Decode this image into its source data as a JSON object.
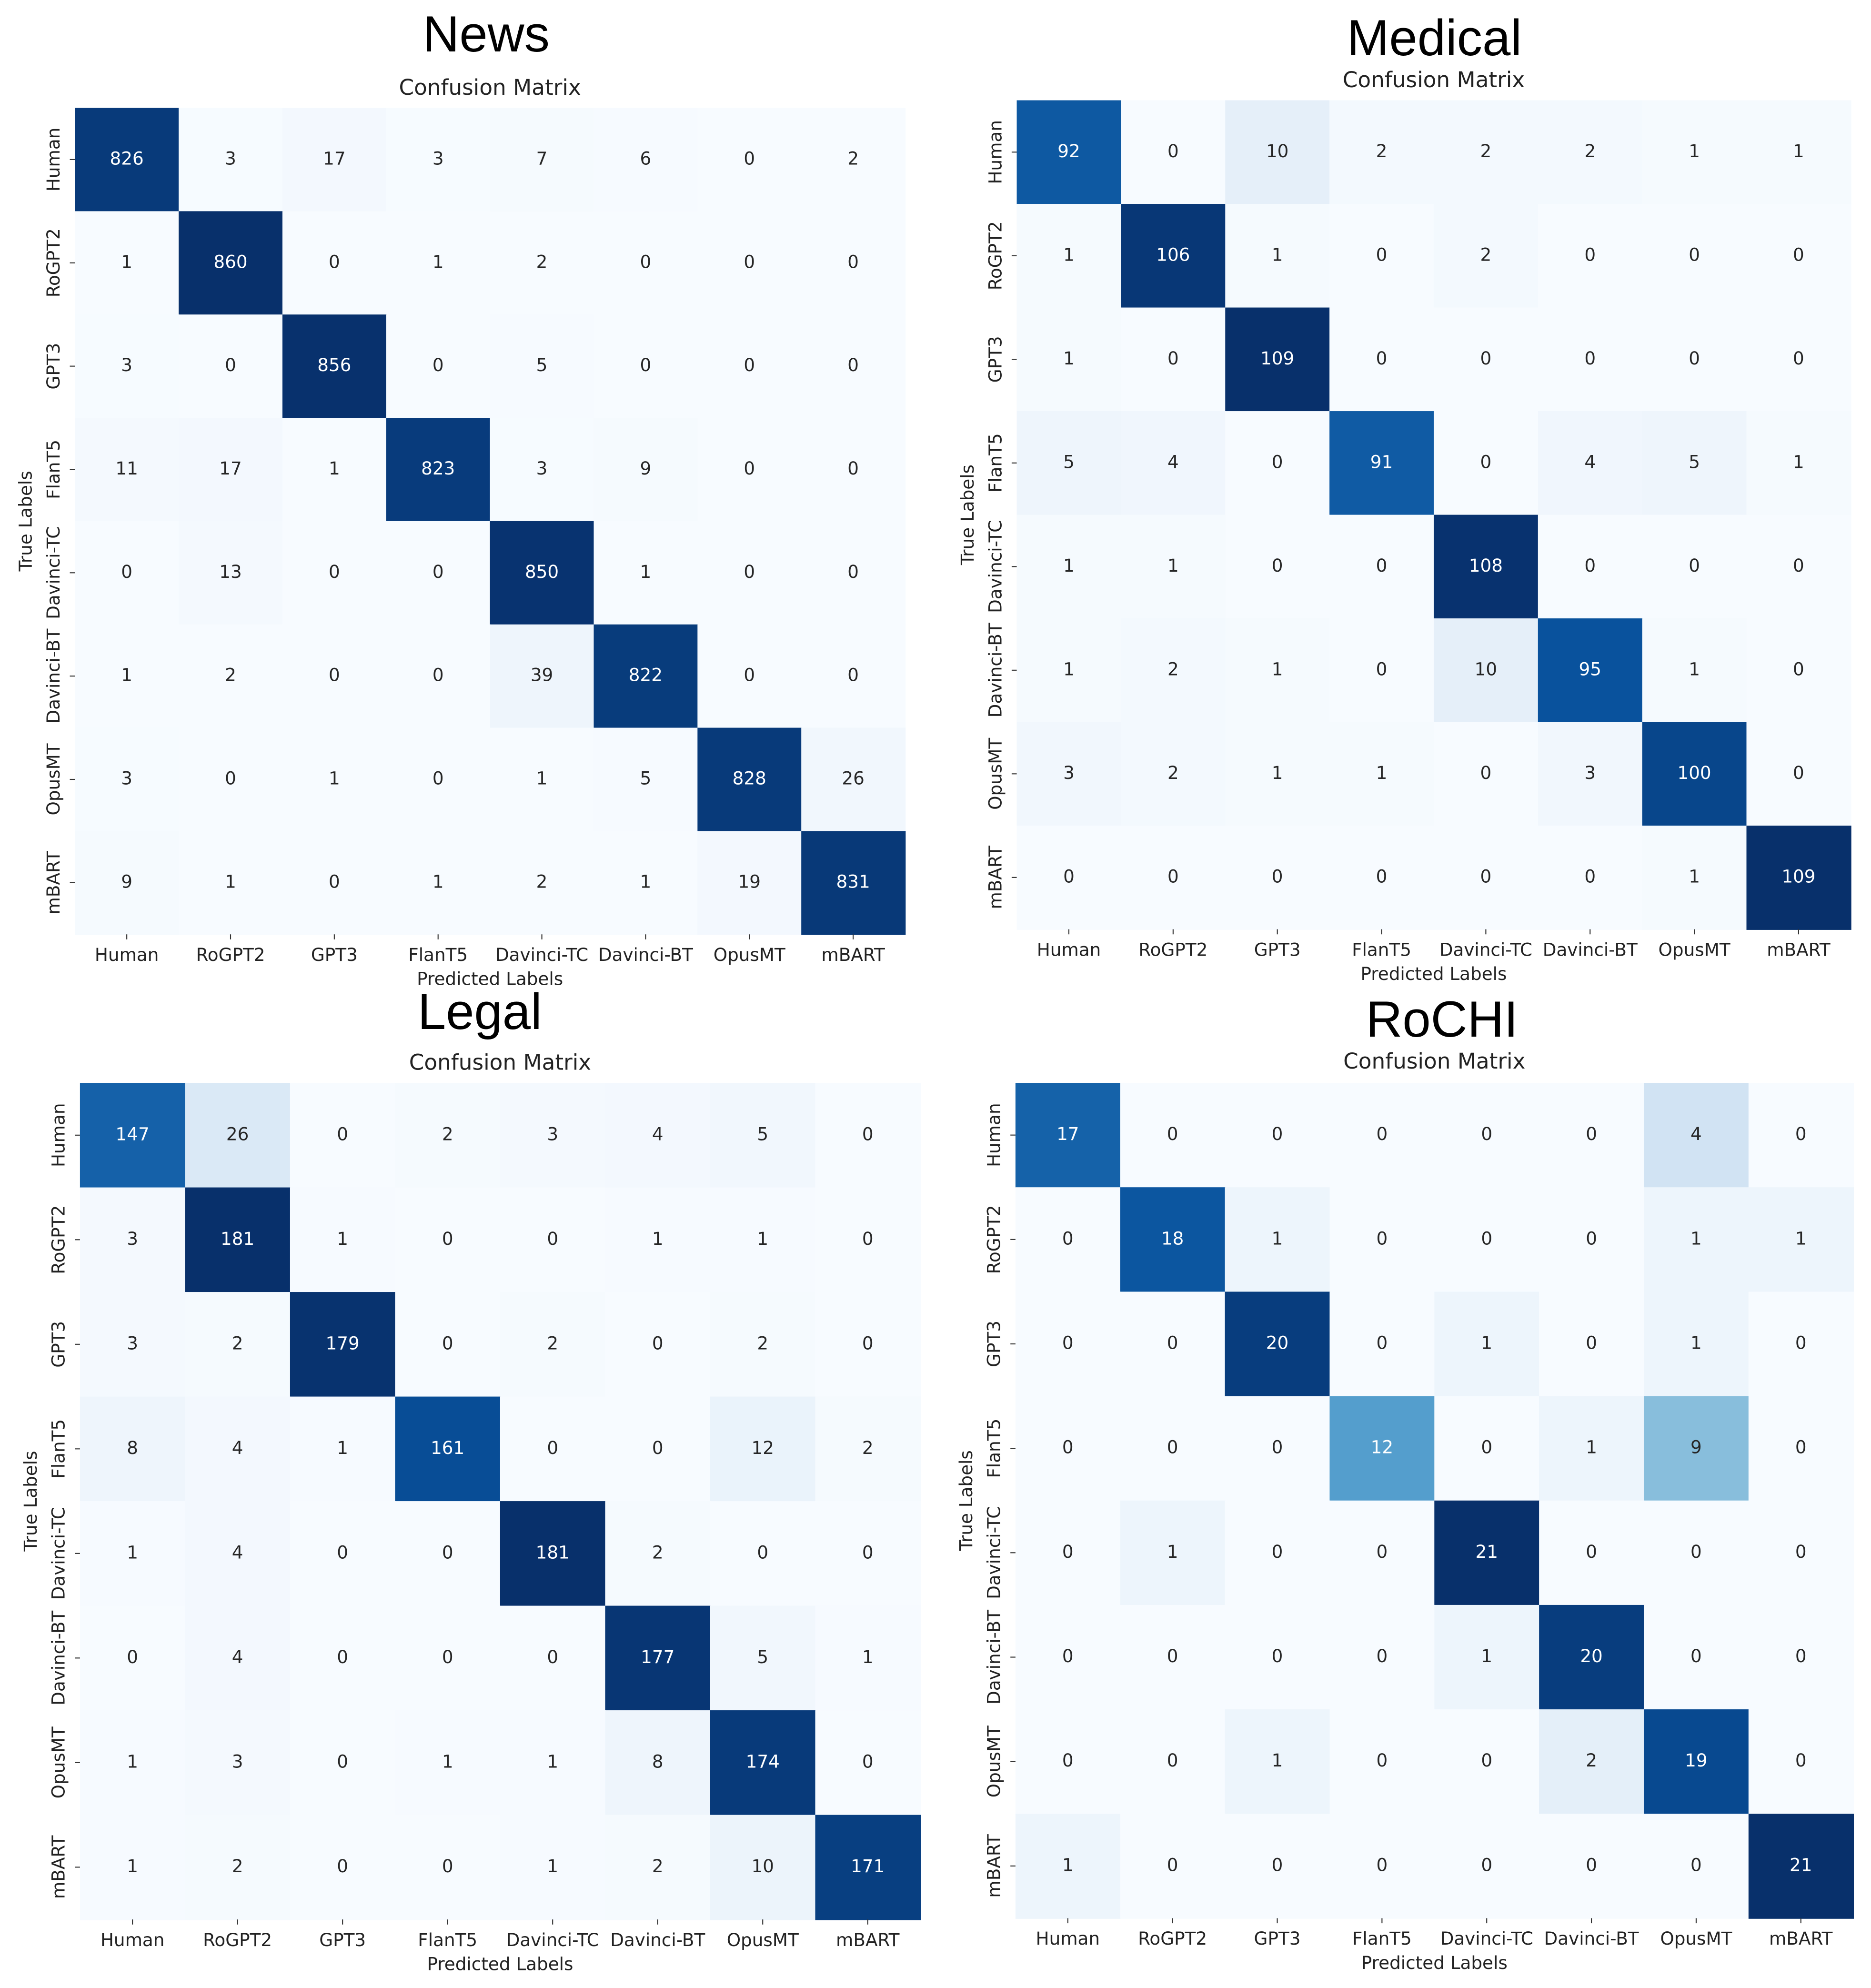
{
  "chart_data": [
    {
      "type": "heatmap",
      "title": "News",
      "subtitle": "Confusion Matrix",
      "x_label": "Predicted Labels",
      "y_label": "True Labels",
      "colormap": "Blues",
      "x_categories": [
        "Human",
        "RoGPT2",
        "GPT3",
        "FlanT5",
        "Davinci-TC",
        "Davinci-BT",
        "OpusMT",
        "mBART"
      ],
      "y_categories": [
        "Human",
        "RoGPT2",
        "GPT3",
        "FlanT5",
        "Davinci-TC",
        "Davinci-BT",
        "OpusMT",
        "mBART"
      ],
      "values": [
        [
          826,
          3,
          17,
          3,
          7,
          6,
          0,
          2
        ],
        [
          1,
          860,
          0,
          1,
          2,
          0,
          0,
          0
        ],
        [
          3,
          0,
          856,
          0,
          5,
          0,
          0,
          0
        ],
        [
          11,
          17,
          1,
          823,
          3,
          9,
          0,
          0
        ],
        [
          0,
          13,
          0,
          0,
          850,
          1,
          0,
          0
        ],
        [
          1,
          2,
          0,
          0,
          39,
          822,
          0,
          0
        ],
        [
          3,
          0,
          1,
          0,
          1,
          5,
          828,
          26
        ],
        [
          9,
          1,
          0,
          1,
          2,
          1,
          19,
          831
        ]
      ]
    },
    {
      "type": "heatmap",
      "title": "Medical",
      "subtitle": "Confusion Matrix",
      "x_label": "Predicted Labels",
      "y_label": "True Labels",
      "colormap": "Blues",
      "x_categories": [
        "Human",
        "RoGPT2",
        "GPT3",
        "FlanT5",
        "Davinci-TC",
        "Davinci-BT",
        "OpusMT",
        "mBART"
      ],
      "y_categories": [
        "Human",
        "RoGPT2",
        "GPT3",
        "FlanT5",
        "Davinci-TC",
        "Davinci-BT",
        "OpusMT",
        "mBART"
      ],
      "values": [
        [
          92,
          0,
          10,
          2,
          2,
          2,
          1,
          1
        ],
        [
          1,
          106,
          1,
          0,
          2,
          0,
          0,
          0
        ],
        [
          1,
          0,
          109,
          0,
          0,
          0,
          0,
          0
        ],
        [
          5,
          4,
          0,
          91,
          0,
          4,
          5,
          1
        ],
        [
          1,
          1,
          0,
          0,
          108,
          0,
          0,
          0
        ],
        [
          1,
          2,
          1,
          0,
          10,
          95,
          1,
          0
        ],
        [
          3,
          2,
          1,
          1,
          0,
          3,
          100,
          0
        ],
        [
          0,
          0,
          0,
          0,
          0,
          0,
          1,
          109
        ]
      ]
    },
    {
      "type": "heatmap",
      "title": "Legal",
      "subtitle": "Confusion Matrix",
      "x_label": "Predicted Labels",
      "y_label": "True Labels",
      "colormap": "Blues",
      "x_categories": [
        "Human",
        "RoGPT2",
        "GPT3",
        "FlanT5",
        "Davinci-TC",
        "Davinci-BT",
        "OpusMT",
        "mBART"
      ],
      "y_categories": [
        "Human",
        "RoGPT2",
        "GPT3",
        "FlanT5",
        "Davinci-TC",
        "Davinci-BT",
        "OpusMT",
        "mBART"
      ],
      "values": [
        [
          147,
          26,
          0,
          2,
          3,
          4,
          5,
          0
        ],
        [
          3,
          181,
          1,
          0,
          0,
          1,
          1,
          0
        ],
        [
          3,
          2,
          179,
          0,
          2,
          0,
          2,
          0
        ],
        [
          8,
          4,
          1,
          161,
          0,
          0,
          12,
          2
        ],
        [
          1,
          4,
          0,
          0,
          181,
          2,
          0,
          0
        ],
        [
          0,
          4,
          0,
          0,
          0,
          177,
          5,
          1
        ],
        [
          1,
          3,
          0,
          1,
          1,
          8,
          174,
          0
        ],
        [
          1,
          2,
          0,
          0,
          1,
          2,
          10,
          171
        ]
      ]
    },
    {
      "type": "heatmap",
      "title": "RoCHI",
      "subtitle": "Confusion Matrix",
      "x_label": "Predicted Labels",
      "y_label": "True Labels",
      "colormap": "Blues",
      "x_categories": [
        "Human",
        "RoGPT2",
        "GPT3",
        "FlanT5",
        "Davinci-TC",
        "Davinci-BT",
        "OpusMT",
        "mBART"
      ],
      "y_categories": [
        "Human",
        "RoGPT2",
        "GPT3",
        "FlanT5",
        "Davinci-TC",
        "Davinci-BT",
        "OpusMT",
        "mBART"
      ],
      "values": [
        [
          17,
          0,
          0,
          0,
          0,
          0,
          4,
          0
        ],
        [
          0,
          18,
          1,
          0,
          0,
          0,
          1,
          1
        ],
        [
          0,
          0,
          20,
          0,
          1,
          0,
          1,
          0
        ],
        [
          0,
          0,
          0,
          12,
          0,
          1,
          9,
          0
        ],
        [
          0,
          1,
          0,
          0,
          21,
          0,
          0,
          0
        ],
        [
          0,
          0,
          0,
          0,
          1,
          20,
          0,
          0
        ],
        [
          0,
          0,
          1,
          0,
          0,
          2,
          19,
          0
        ],
        [
          1,
          0,
          0,
          0,
          0,
          0,
          0,
          21
        ]
      ]
    }
  ]
}
